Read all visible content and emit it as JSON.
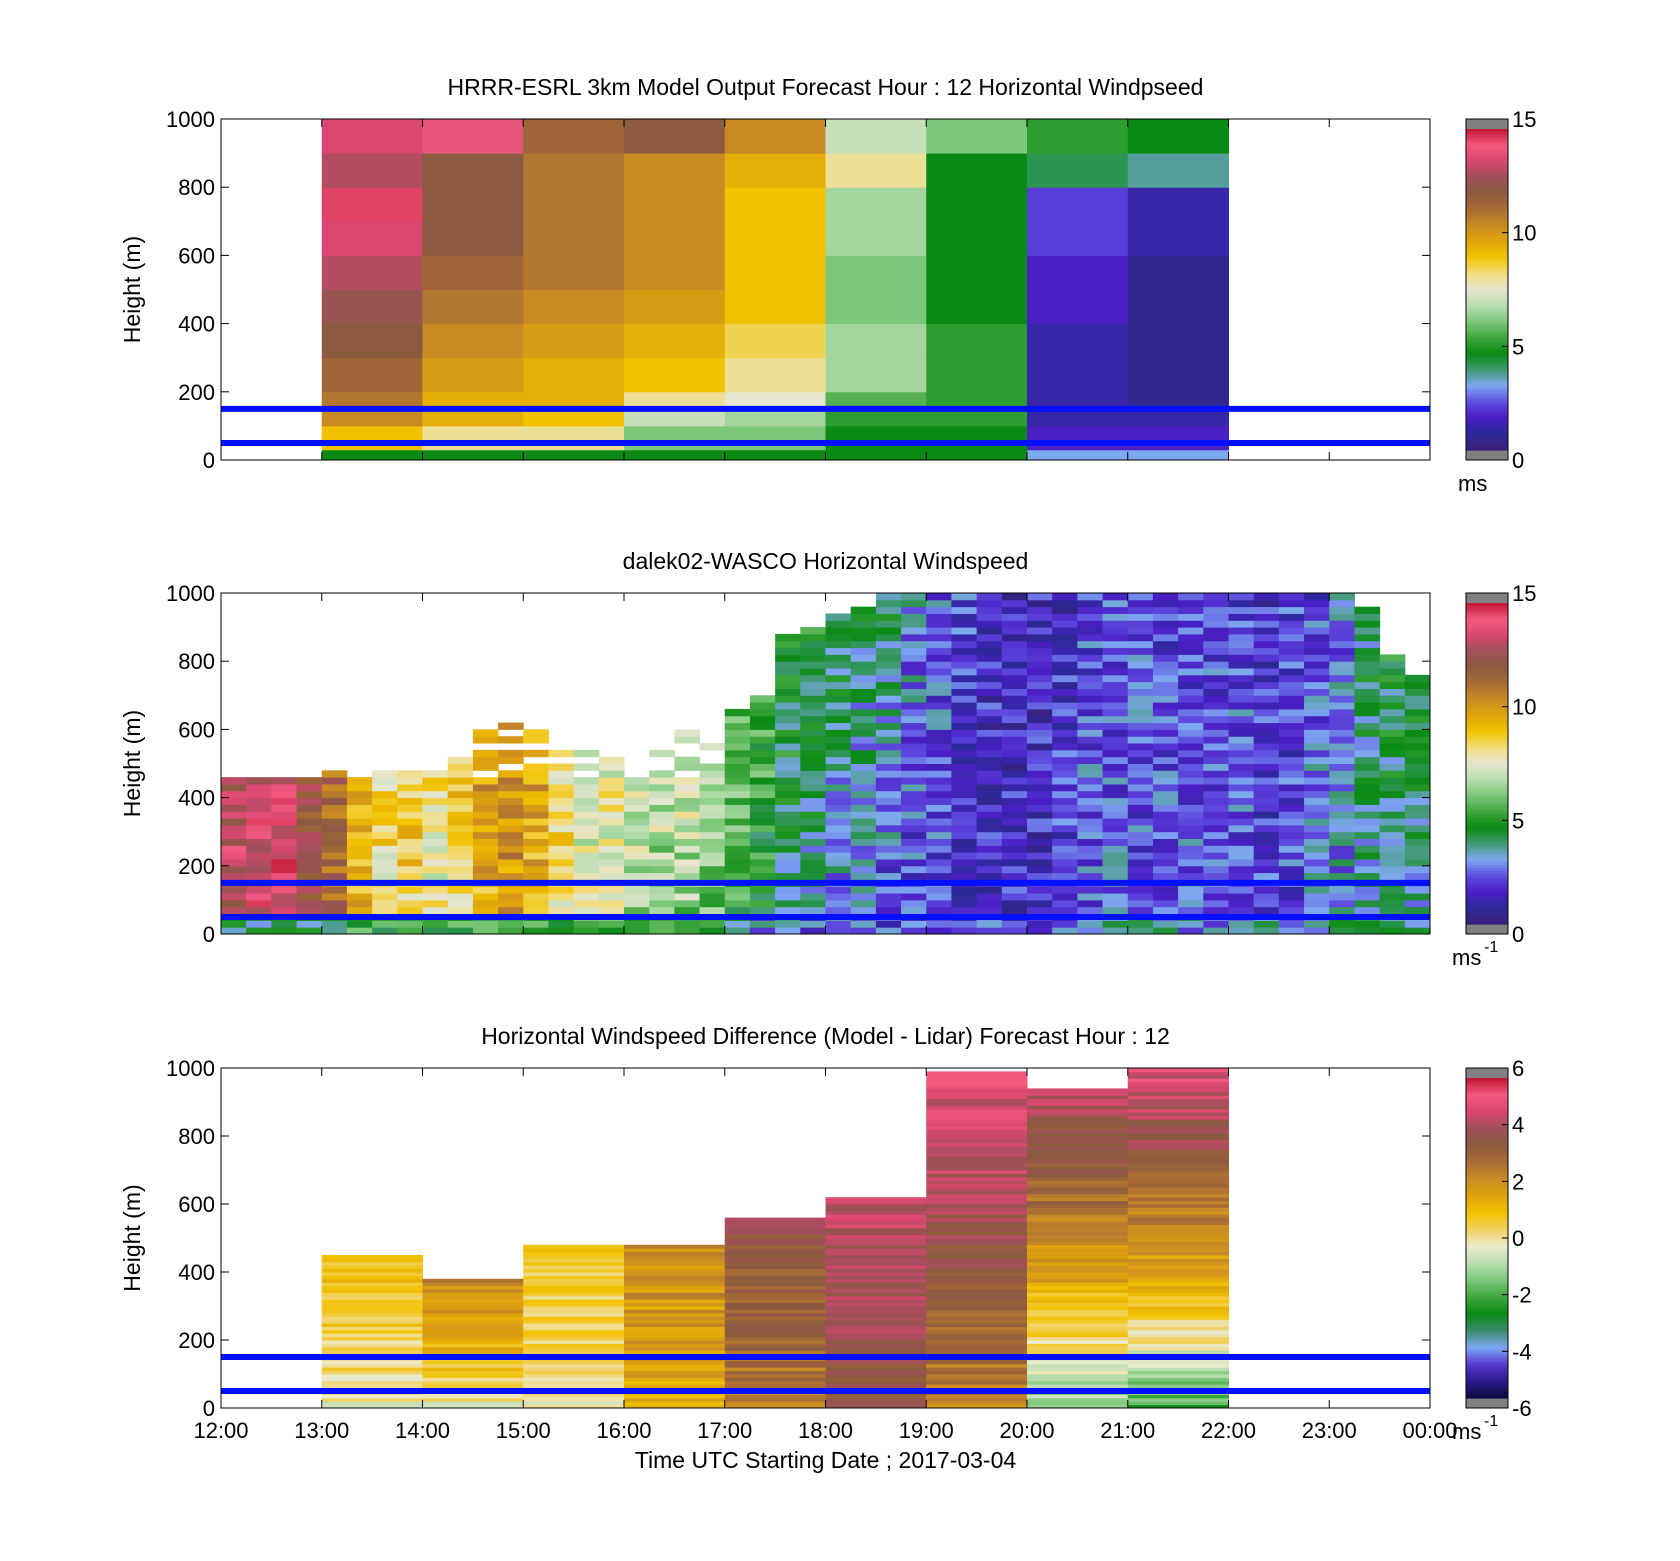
{
  "colormaps": {
    "windspeed": [
      "#3a1e78",
      "#2d2a9a",
      "#4a1fc4",
      "#5f4ee0",
      "#7ea8f0",
      "#3f9a72",
      "#0a8a14",
      "#3ea63c",
      "#7cc87a",
      "#b9dcb0",
      "#e6e6d0",
      "#f2dc7a",
      "#f2c200",
      "#e0a40c",
      "#c98a24",
      "#a86c34",
      "#8c5a40",
      "#a0505a",
      "#d84870",
      "#f25a80",
      "#c01432"
    ],
    "difference": [
      "#0a0a40",
      "#2a1a8a",
      "#5a3ad0",
      "#7aa8f0",
      "#3a8a6a",
      "#0a8a14",
      "#3ea63c",
      "#7cc87a",
      "#b9dcb0",
      "#ececd0",
      "#f2d060",
      "#f2c200",
      "#e0a40c",
      "#c98a24",
      "#a86c34",
      "#8c5a40",
      "#a0505a",
      "#d84870",
      "#f25a80",
      "#c01432"
    ]
  },
  "chart_data": [
    {
      "type": "heatmap",
      "title": "HRRR-ESRL 3km Model Output   Forecast Hour : 12 Horizontal Windpseed",
      "xlabel": "",
      "ylabel": "Height (m)",
      "y_ticks": [
        "0",
        "200",
        "400",
        "600",
        "800",
        "1000"
      ],
      "x_ticks": [
        "12:00",
        "13:00",
        "14:00",
        "15:00",
        "16:00",
        "17:00",
        "18:00",
        "19:00",
        "20:00",
        "21:00",
        "22:00",
        "23:00",
        "00:00"
      ],
      "xlim_hours": [
        12,
        24
      ],
      "ylim": [
        0,
        1000
      ],
      "colorbar": {
        "ticks": [
          "0",
          "5",
          "10",
          "15"
        ],
        "range": [
          0,
          15
        ],
        "unit": "ms",
        "exponent": ""
      },
      "reference_lines_m": [
        150,
        50
      ],
      "line_color": "#0010ff",
      "columns_hours": [
        13,
        14,
        15,
        16,
        17,
        18,
        19,
        20,
        21
      ],
      "levels_m": [
        0,
        30,
        100,
        150,
        200,
        300,
        400,
        500,
        600,
        700,
        800,
        900,
        1000
      ],
      "values": [
        [
          4.5,
          9.0,
          10.5,
          11.0,
          11.5,
          12.0,
          12.5,
          13.0,
          13.5,
          14.5,
          13.0,
          13.5
        ],
        [
          4.5,
          8.0,
          9.5,
          9.5,
          10.0,
          10.5,
          11.0,
          11.5,
          12.0,
          12.0,
          12.0,
          14.0
        ],
        [
          4.5,
          8.0,
          9.0,
          9.5,
          9.5,
          10.0,
          10.5,
          11.0,
          11.0,
          11.0,
          11.0,
          11.5
        ],
        [
          4.5,
          6.0,
          7.0,
          8.0,
          9.0,
          9.5,
          10.0,
          10.5,
          10.5,
          10.5,
          10.5,
          12.0
        ],
        [
          4.5,
          6.0,
          6.5,
          7.5,
          8.0,
          8.5,
          9.0,
          9.0,
          9.0,
          9.0,
          9.5,
          10.5
        ],
        [
          4.5,
          4.5,
          5.0,
          5.5,
          6.5,
          6.5,
          6.0,
          6.0,
          6.5,
          6.5,
          8.0,
          7.0
        ],
        [
          4.5,
          4.5,
          5.0,
          5.0,
          5.0,
          5.0,
          4.5,
          4.5,
          4.5,
          4.5,
          4.5,
          6.0
        ],
        [
          3.0,
          1.5,
          1.0,
          1.0,
          1.0,
          1.0,
          1.5,
          1.5,
          2.0,
          2.0,
          4.0,
          5.0
        ],
        [
          3.0,
          1.5,
          1.0,
          0.5,
          0.5,
          0.5,
          0.5,
          0.5,
          1.0,
          1.0,
          3.5,
          4.5
        ]
      ]
    },
    {
      "type": "heatmap",
      "title": "dalek02-WASCO  Horizontal Windspeed",
      "xlabel": "",
      "ylabel": "Height (m)",
      "y_ticks": [
        "0",
        "200",
        "400",
        "600",
        "800",
        "1000"
      ],
      "xlim_hours": [
        12,
        24
      ],
      "ylim": [
        0,
        1000
      ],
      "colorbar": {
        "ticks": [
          "0",
          "5",
          "10",
          "15"
        ],
        "range": [
          0,
          15
        ],
        "unit": "ms",
        "exponent": "-1"
      },
      "reference_lines_m": [
        150,
        50
      ],
      "line_color": "#0010ff",
      "columns_start_hour": 12.0,
      "column_width_hours": 0.25,
      "bin_height_m": 20,
      "profiles": [
        {
          "surface": 4,
          "mid": 13.0,
          "top": 13.5,
          "data_top_m": 450
        },
        {
          "surface": 4,
          "mid": 13.5,
          "top": 14.0,
          "data_top_m": 450
        },
        {
          "surface": 4,
          "mid": 13.5,
          "top": 14.5,
          "data_top_m": 450
        },
        {
          "surface": 4,
          "mid": 12.5,
          "top": 12.0,
          "data_top_m": 460
        },
        {
          "surface": 4,
          "mid": 11.5,
          "top": 11.5,
          "data_top_m": 470
        },
        {
          "surface": 5,
          "mid": 9.5,
          "top": 9.5,
          "data_top_m": 500
        },
        {
          "surface": 5,
          "mid": 8.0,
          "top": 9.0,
          "data_top_m": 470
        },
        {
          "surface": 5,
          "mid": 8.5,
          "top": 9.5,
          "data_top_m": 480
        },
        {
          "surface": 5,
          "mid": 7.5,
          "top": 9.0,
          "data_top_m": 470
        },
        {
          "surface": 5,
          "mid": 8.0,
          "top": 9.5,
          "data_top_m": 520
        },
        {
          "surface": 5,
          "mid": 9.5,
          "top": 10.5,
          "data_top_m": 600
        },
        {
          "surface": 5,
          "mid": 10.0,
          "top": 11.0,
          "data_top_m": 610
        },
        {
          "surface": 5,
          "mid": 9.5,
          "top": 10.0,
          "data_top_m": 600
        },
        {
          "surface": 5,
          "mid": 8.0,
          "top": 9.0,
          "data_top_m": 560
        },
        {
          "surface": 5,
          "mid": 7.0,
          "top": 8.5,
          "data_top_m": 540
        },
        {
          "surface": 5,
          "mid": 7.5,
          "top": 8.0,
          "data_top_m": 520
        },
        {
          "surface": 4.5,
          "mid": 6.5,
          "top": 8.5,
          "data_top_m": 560
        },
        {
          "surface": 4.5,
          "mid": 6.0,
          "top": 8.5,
          "data_top_m": 580
        },
        {
          "surface": 4.5,
          "mid": 6.0,
          "top": 9.0,
          "data_top_m": 590
        },
        {
          "surface": 4.5,
          "mid": 5.5,
          "top": 9.0,
          "data_top_m": 600
        },
        {
          "surface": 4,
          "mid": 5.0,
          "top": 6.0,
          "data_top_m": 650
        },
        {
          "surface": 3,
          "mid": 4.5,
          "top": 5.5,
          "data_top_m": 700
        },
        {
          "surface": 2.5,
          "mid": 3.5,
          "top": 5.0,
          "data_top_m": 880
        },
        {
          "surface": 2.5,
          "mid": 3.0,
          "top": 5.0,
          "data_top_m": 900
        },
        {
          "surface": 2.5,
          "mid": 2.5,
          "top": 4.5,
          "data_top_m": 930
        },
        {
          "surface": 2.5,
          "mid": 2.5,
          "top": 4.0,
          "data_top_m": 960
        },
        {
          "surface": 2,
          "mid": 2.0,
          "top": 4.0,
          "data_top_m": 990
        },
        {
          "surface": 2,
          "mid": 2.0,
          "top": 3.0,
          "data_top_m": 1000
        },
        {
          "surface": 2,
          "mid": 2.0,
          "top": 2.5,
          "data_top_m": 1000
        },
        {
          "surface": 2,
          "mid": 1.5,
          "top": 2.0,
          "data_top_m": 1000
        },
        {
          "surface": 2,
          "mid": 1.5,
          "top": 1.5,
          "data_top_m": 1000
        },
        {
          "surface": 2,
          "mid": 1.5,
          "top": 1.5,
          "data_top_m": 1000
        },
        {
          "surface": 2,
          "mid": 1.5,
          "top": 1.5,
          "data_top_m": 1000
        },
        {
          "surface": 2.5,
          "mid": 2.0,
          "top": 1.5,
          "data_top_m": 1000
        },
        {
          "surface": 3,
          "mid": 2.5,
          "top": 2.0,
          "data_top_m": 1000
        },
        {
          "surface": 3,
          "mid": 2.5,
          "top": 2.0,
          "data_top_m": 1000
        },
        {
          "surface": 3,
          "mid": 2.0,
          "top": 2.5,
          "data_top_m": 1000
        },
        {
          "surface": 3,
          "mid": 2.5,
          "top": 2.0,
          "data_top_m": 1000
        },
        {
          "surface": 3,
          "mid": 2.5,
          "top": 2.0,
          "data_top_m": 1000
        },
        {
          "surface": 3,
          "mid": 2.5,
          "top": 2.0,
          "data_top_m": 1000
        },
        {
          "surface": 3,
          "mid": 2.5,
          "top": 2.0,
          "data_top_m": 1000
        },
        {
          "surface": 3,
          "mid": 2.0,
          "top": 1.5,
          "data_top_m": 1000
        },
        {
          "surface": 3,
          "mid": 2.0,
          "top": 2.0,
          "data_top_m": 1000
        },
        {
          "surface": 3.5,
          "mid": 3.0,
          "top": 2.0,
          "data_top_m": 1000
        },
        {
          "surface": 4,
          "mid": 3.0,
          "top": 2.5,
          "data_top_m": 1000
        },
        {
          "surface": 4,
          "mid": 3.5,
          "top": 4.0,
          "data_top_m": 950
        },
        {
          "surface": 4,
          "mid": 3.5,
          "top": 4.5,
          "data_top_m": 820
        },
        {
          "surface": 4,
          "mid": 3.0,
          "top": 5.0,
          "data_top_m": 750
        }
      ]
    },
    {
      "type": "heatmap",
      "title": "Horizontal Windspeed Difference (Model - Lidar) Forecast Hour : 12",
      "xlabel": "Time UTC  Starting Date ; 2017-03-04",
      "ylabel": "Height (m)",
      "y_ticks": [
        "0",
        "200",
        "400",
        "600",
        "800",
        "1000"
      ],
      "x_ticks": [
        "12:00",
        "13:00",
        "14:00",
        "15:00",
        "16:00",
        "17:00",
        "18:00",
        "19:00",
        "20:00",
        "21:00",
        "22:00",
        "23:00",
        "00:00"
      ],
      "xlim_hours": [
        12,
        24
      ],
      "ylim": [
        0,
        1000
      ],
      "colorbar": {
        "ticks": [
          "-6",
          "-4",
          "-2",
          "0",
          "2",
          "4",
          "6"
        ],
        "range": [
          -6,
          6
        ],
        "unit": "ms",
        "exponent": "-1"
      },
      "reference_lines_m": [
        150,
        50
      ],
      "line_color": "#0010ff",
      "columns": [
        {
          "hour": 13,
          "data_top_m": 450,
          "low": -0.3,
          "high": 1.0
        },
        {
          "hour": 14,
          "data_top_m": 380,
          "low": -0.5,
          "high": 2.4
        },
        {
          "hour": 15,
          "data_top_m": 480,
          "low": -0.2,
          "high": 0.8
        },
        {
          "hour": 16,
          "data_top_m": 480,
          "low": 1.2,
          "high": 2.2
        },
        {
          "hour": 17,
          "data_top_m": 560,
          "low": 2.2,
          "high": 3.8
        },
        {
          "hour": 18,
          "data_top_m": 620,
          "low": 3.6,
          "high": 4.4
        },
        {
          "hour": 19,
          "data_top_m": 990,
          "low": 2.0,
          "high": 5.0
        },
        {
          "hour": 20,
          "data_top_m": 940,
          "low": -1.8,
          "high": 4.5
        },
        {
          "hour": 21,
          "data_top_m": 1000,
          "low": -2.5,
          "high": 5.0
        }
      ]
    }
  ]
}
